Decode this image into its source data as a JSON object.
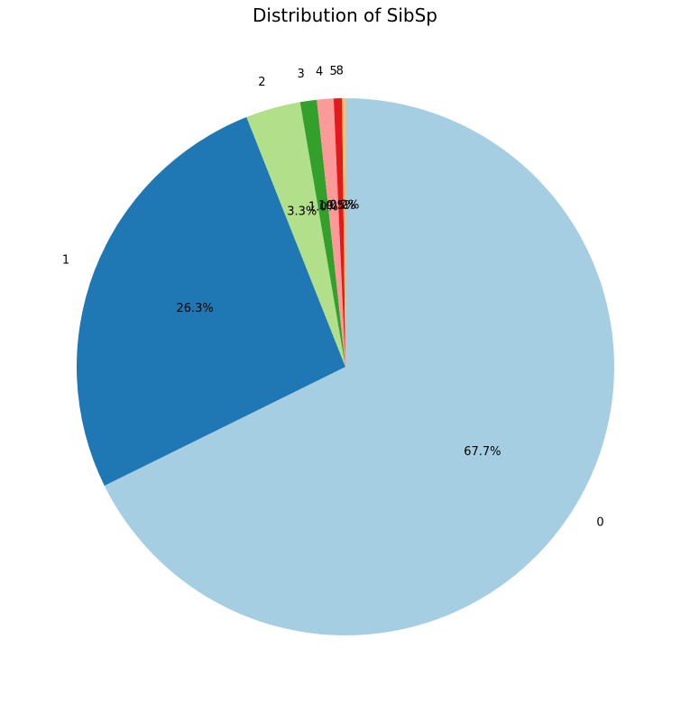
{
  "chart_data": {
    "type": "pie",
    "title": "Distribution of SibSp",
    "categories": [
      "0",
      "1",
      "2",
      "3",
      "4",
      "5",
      "8"
    ],
    "values": [
      67.7,
      26.3,
      3.3,
      1.0,
      1.0,
      0.5,
      0.2
    ],
    "value_labels": [
      "67.7%",
      "26.3%",
      "3.3%",
      "1.0%",
      "1.0%",
      "0.5%",
      "0.2%"
    ],
    "colors": [
      "#a6cee3",
      "#1f78b4",
      "#b2df8a",
      "#33a02c",
      "#fb9a99",
      "#e31a1c",
      "#fdbf6f"
    ],
    "start_angle_deg": 90,
    "direction": "clockwise"
  }
}
